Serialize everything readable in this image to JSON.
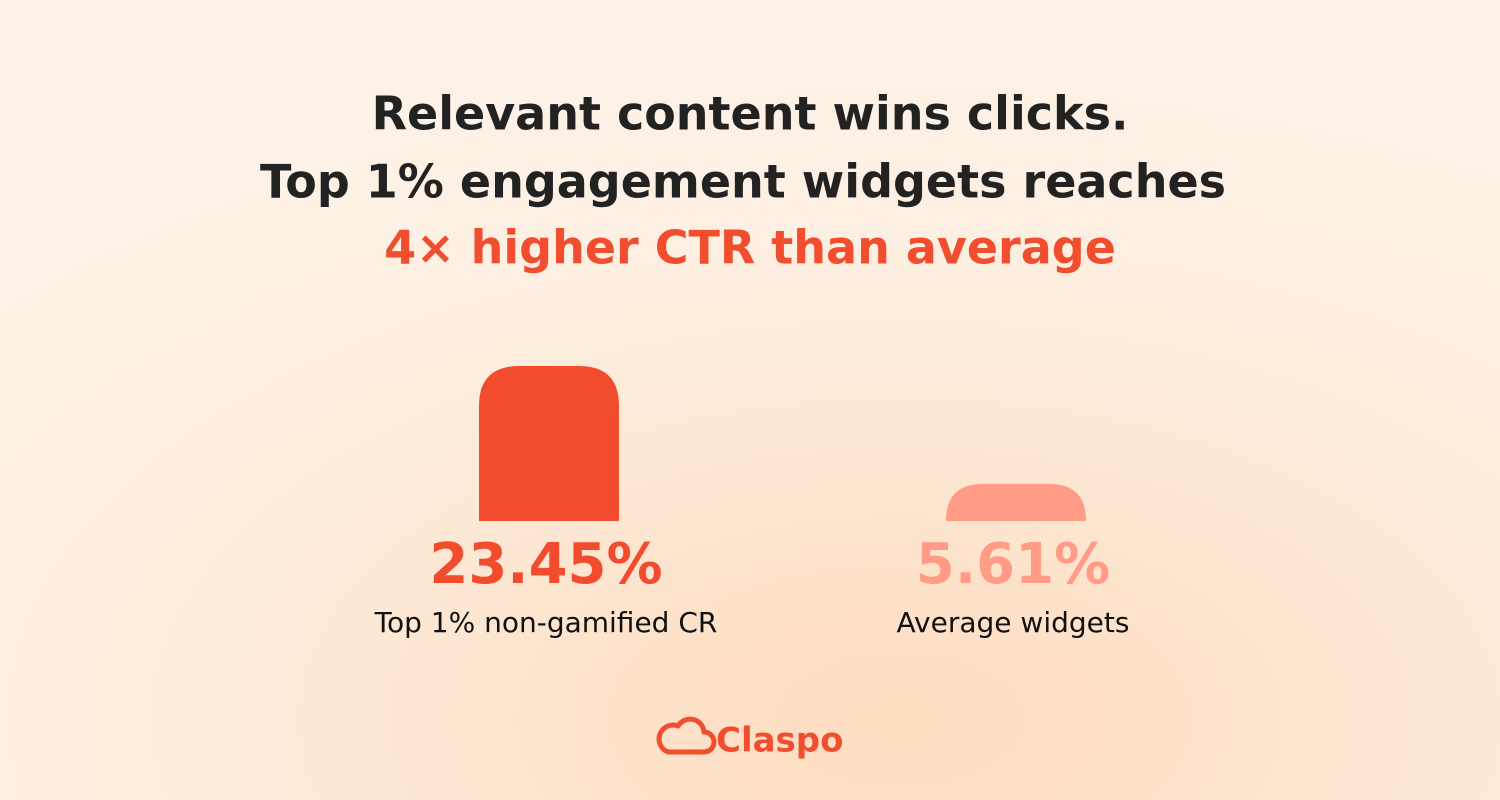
{
  "chart_data": {
    "type": "bar",
    "title": "Relevant content wins clicks.",
    "subtitle": "Top 1% engagement widgets reaches",
    "highlight": "4× higher CTR than average",
    "categories": [
      "Top 1% non-gamified CR",
      "Average widgets"
    ],
    "values": [
      23.45,
      5.61
    ],
    "value_labels": [
      "23.45%",
      "5.61%"
    ],
    "colors": [
      "#f24c2f",
      "#ff9b86"
    ],
    "brand": "Claspo"
  }
}
